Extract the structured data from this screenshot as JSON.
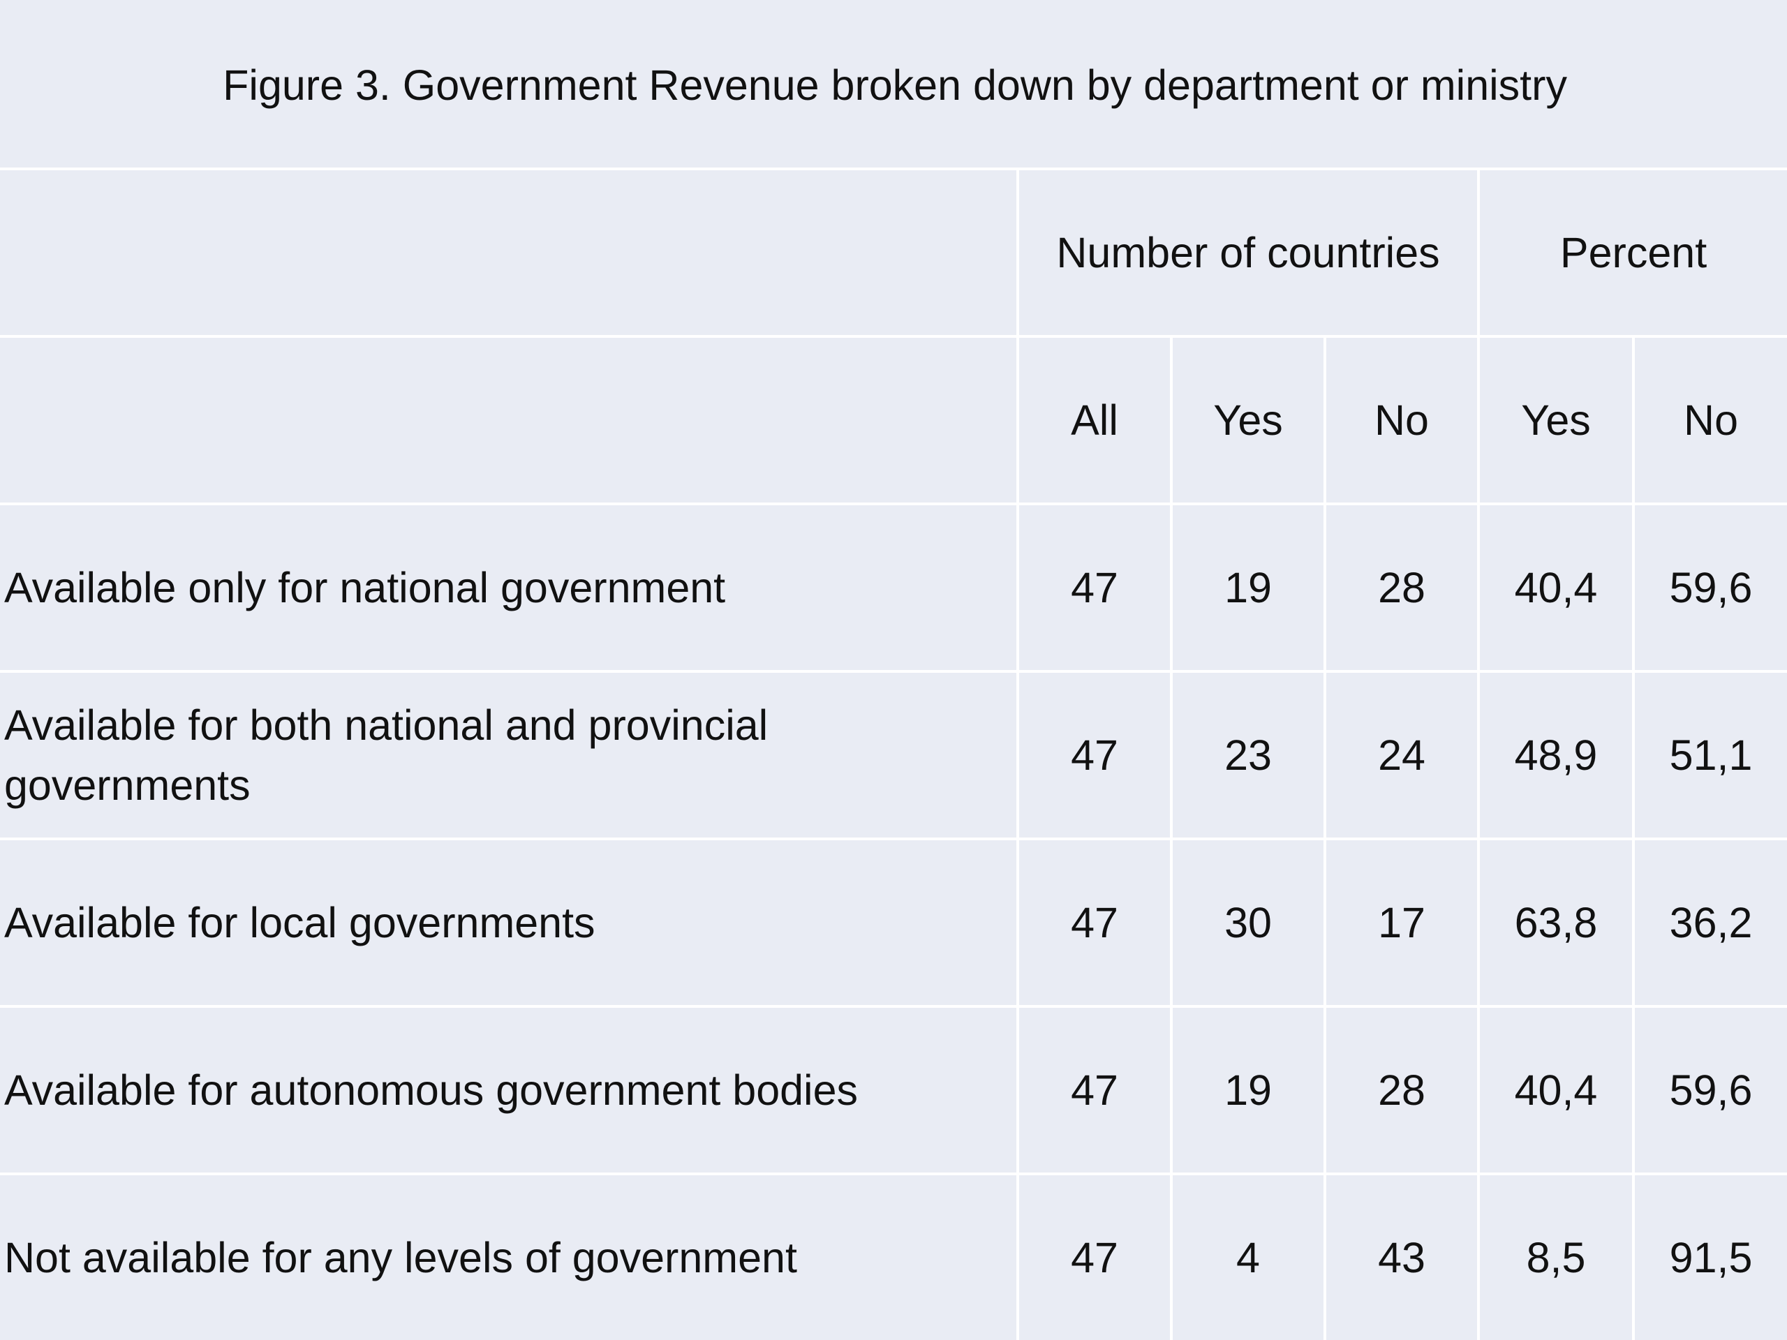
{
  "title": "Figure 3. Government Revenue broken down by department or ministry",
  "headers": {
    "group_count": "Number of countries",
    "group_percent": "Percent",
    "all": "All",
    "count_yes": "Yes",
    "count_no": "No",
    "pct_yes": "Yes",
    "pct_no": "No"
  },
  "rows": [
    {
      "label": "Available only for national government",
      "all": "47",
      "yes": "19",
      "no": "28",
      "pct_yes": "40,4",
      "pct_no": "59,6"
    },
    {
      "label": "Available for both national and provincial governments",
      "all": "47",
      "yes": "23",
      "no": "24",
      "pct_yes": "48,9",
      "pct_no": "51,1"
    },
    {
      "label": "Available for local governments",
      "all": "47",
      "yes": "30",
      "no": "17",
      "pct_yes": "63,8",
      "pct_no": "36,2"
    },
    {
      "label": "Available for autonomous government bodies",
      "all": "47",
      "yes": "19",
      "no": "28",
      "pct_yes": "40,4",
      "pct_no": "59,6"
    },
    {
      "label": "Not available for any levels of government",
      "all": "47",
      "yes": "4",
      "no": "43",
      "pct_yes": "8,5",
      "pct_no": "91,5"
    }
  ]
}
